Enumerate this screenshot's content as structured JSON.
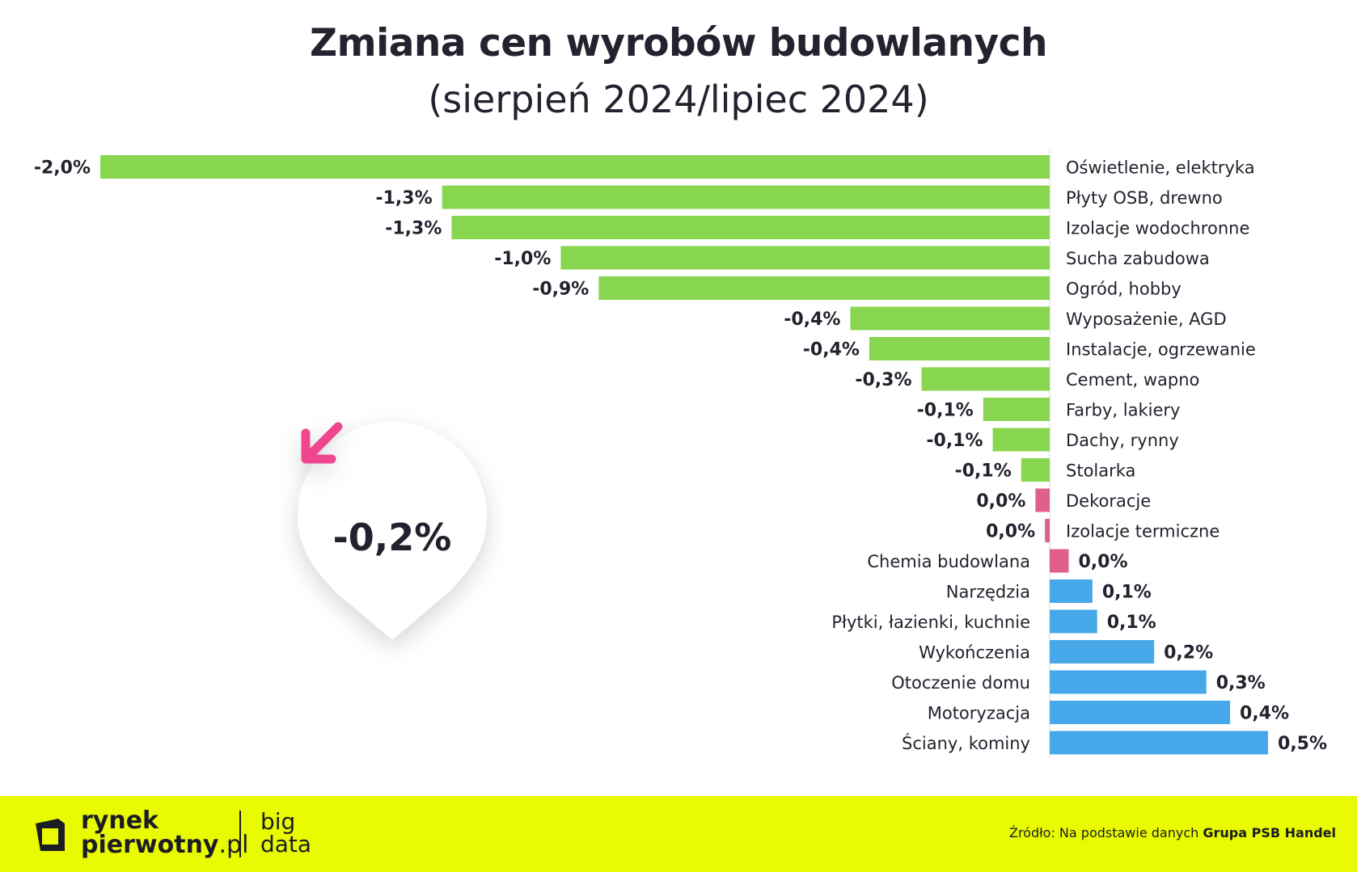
{
  "chart_data": {
    "type": "bar",
    "orientation": "horizontal",
    "title": "Zmiana cen wyrobów budowlanych",
    "subtitle": "(sierpień 2024/lipiec 2024)",
    "colors": {
      "negative": "#88d64f",
      "zero": "#e0608d",
      "positive": "#46a8e8"
    },
    "categories": [
      "Oświetlenie, elektryka",
      "Płyty OSB, drewno",
      "Izolacje wodochronne",
      "Sucha zabudowa",
      "Ogród, hobby",
      "Wyposażenie, AGD",
      "Instalacje, ogrzewanie",
      "Cement, wapno",
      "Farby, lakiery",
      "Dachy, rynny",
      "Stolarka",
      "Dekoracje",
      "Izolacje termiczne",
      "Chemia budowlana",
      "Narzędzia",
      "Płytki, łazienki, kuchnie",
      "Wykończenia",
      "Otoczenie domu",
      "Motoryzacja",
      "Ściany, kominy"
    ],
    "values": [
      -2.0,
      -1.28,
      -1.26,
      -1.03,
      -0.95,
      -0.42,
      -0.38,
      -0.27,
      -0.14,
      -0.12,
      -0.06,
      -0.03,
      -0.01,
      0.04,
      0.09,
      0.1,
      0.22,
      0.33,
      0.38,
      0.46
    ],
    "labels": [
      "-2,0%",
      "-1,3%",
      "-1,3%",
      "-1,0%",
      "-0,9%",
      "-0,4%",
      "-0,4%",
      "-0,3%",
      "-0,1%",
      "-0,1%",
      "-0,1%",
      "0,0%",
      "0,0%",
      "0,0%",
      "0,1%",
      "0,1%",
      "0,2%",
      "0,3%",
      "0,4%",
      "0,5%"
    ],
    "color_groups": [
      "negative",
      "negative",
      "negative",
      "negative",
      "negative",
      "negative",
      "negative",
      "negative",
      "negative",
      "negative",
      "negative",
      "zero",
      "zero",
      "zero",
      "positive",
      "positive",
      "positive",
      "positive",
      "positive",
      "positive"
    ],
    "xlim": [
      -2.0,
      0.46
    ],
    "grid": false,
    "legend": "none"
  },
  "summary": {
    "value": "-0,2%",
    "arrow_icon": "arrow-down-left-icon",
    "arrow_color": "#f0458f"
  },
  "footer": {
    "logo_line1": "rynek",
    "logo_line2_bold": "pierwotny",
    "logo_line2_suffix": ".pl",
    "big": "big",
    "data": "data",
    "source_prefix": "Źródło: Na podstawie danych",
    "source_name": "Grupa PSB Handel",
    "background": "#e8fb00"
  }
}
